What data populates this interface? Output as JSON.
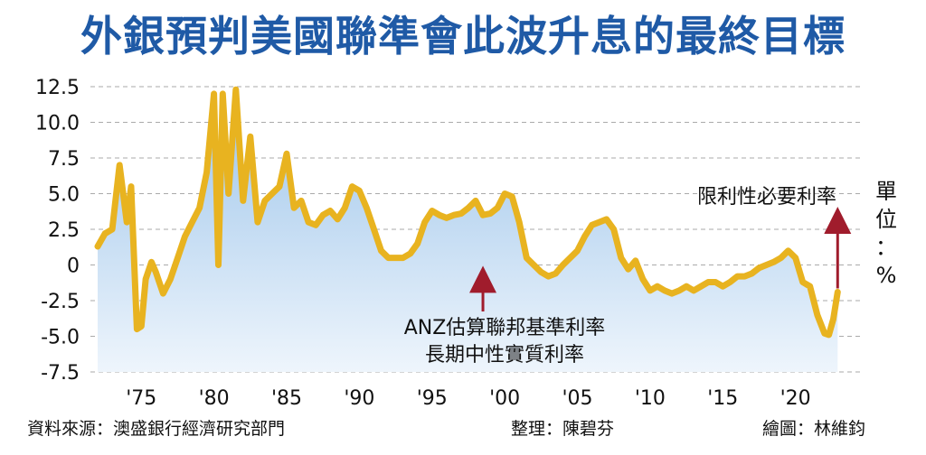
{
  "title": "外銀預判美國聯準會此波升息的最終目標",
  "unit_label": [
    "單",
    "位",
    "：",
    "%"
  ],
  "footer": {
    "source": "資料來源：澳盛銀行經濟研究部門",
    "editor": "整理：陳碧芬",
    "artist": "繪圖：林維鈞"
  },
  "colors": {
    "title": "#1f5aa6",
    "line": "#e8b320",
    "arrow": "#a01c2c",
    "area_top": "#9cc4ea",
    "area_bottom": "#eef5fc"
  },
  "chart_data": {
    "type": "area",
    "title": "外銀預判美國聯準會此波升息的最終目標",
    "ylim": [
      -7.5,
      12.5
    ],
    "yticks": [
      "12.5",
      "10.0",
      "7.5",
      "5.0",
      "2.5",
      "0",
      "-2.5",
      "-5.0",
      "-7.5"
    ],
    "ytick_values": [
      12.5,
      10.0,
      7.5,
      5.0,
      2.5,
      0,
      -2.5,
      -5.0,
      -7.5
    ],
    "xticks": [
      "'75",
      "'80",
      "'85",
      "'90",
      "'95",
      "'00",
      "'05",
      "'10",
      "'15",
      "'20"
    ],
    "xtick_values": [
      1975,
      1980,
      1985,
      1990,
      1995,
      2000,
      2005,
      2010,
      2015,
      2020
    ],
    "grid": "horizontal dashed",
    "series": [
      {
        "name": "ANZ估算聯邦基準利率長期中性實質利率",
        "x": [
          1972,
          1972.5,
          1973,
          1973.5,
          1974,
          1974.3,
          1974.7,
          1975,
          1975.3,
          1975.7,
          1976,
          1976.5,
          1977,
          1977.5,
          1978,
          1978.5,
          1979,
          1979.5,
          1980,
          1980.3,
          1980.6,
          1981,
          1981.5,
          1982,
          1982.5,
          1983,
          1983.5,
          1984,
          1984.5,
          1985,
          1985.5,
          1986,
          1986.5,
          1987,
          1987.5,
          1988,
          1988.5,
          1989,
          1989.5,
          1990,
          1990.5,
          1991,
          1991.5,
          1992,
          1992.5,
          1993,
          1993.5,
          1994,
          1994.5,
          1995,
          1995.5,
          1996,
          1996.5,
          1997,
          1997.5,
          1998,
          1998.5,
          1999,
          1999.5,
          2000,
          2000.5,
          2001,
          2001.5,
          2002,
          2002.5,
          2003,
          2003.5,
          2004,
          2004.5,
          2005,
          2005.5,
          2006,
          2006.5,
          2007,
          2007.5,
          2008,
          2008.5,
          2009,
          2009.5,
          2010,
          2010.5,
          2011,
          2011.5,
          2012,
          2012.5,
          2013,
          2013.5,
          2014,
          2014.5,
          2015,
          2015.5,
          2016,
          2016.5,
          2017,
          2017.5,
          2018,
          2018.5,
          2019,
          2019.5,
          2020,
          2020.5,
          2021,
          2021.5,
          2022,
          2022.3,
          2022.6,
          2022.9
        ],
        "y": [
          1.3,
          2.2,
          2.5,
          7.0,
          3.0,
          5.5,
          -4.5,
          -4.3,
          -1.0,
          0.2,
          -0.5,
          -2.0,
          -1.0,
          0.5,
          2.0,
          3.0,
          4.0,
          6.5,
          12.0,
          0.0,
          12.0,
          5.0,
          12.3,
          4.5,
          9.0,
          3.0,
          4.5,
          5.0,
          5.5,
          7.8,
          4.0,
          4.5,
          3.0,
          2.8,
          3.5,
          3.8,
          3.2,
          4.0,
          5.5,
          5.2,
          4.0,
          2.5,
          1.0,
          0.5,
          0.5,
          0.5,
          0.8,
          1.5,
          3.0,
          3.8,
          3.5,
          3.3,
          3.5,
          3.6,
          4.0,
          4.5,
          3.5,
          3.6,
          4.0,
          5.0,
          4.8,
          3.0,
          0.5,
          0.0,
          -0.5,
          -0.8,
          -0.6,
          0.0,
          0.5,
          1.0,
          2.0,
          2.8,
          3.0,
          3.2,
          2.5,
          0.5,
          -0.3,
          0.3,
          -1.0,
          -1.8,
          -1.5,
          -1.8,
          -2.0,
          -1.8,
          -1.5,
          -1.8,
          -1.5,
          -1.2,
          -1.2,
          -1.5,
          -1.2,
          -0.8,
          -0.8,
          -0.6,
          -0.2,
          0.0,
          0.2,
          0.5,
          1.0,
          0.5,
          -1.2,
          -1.5,
          -3.5,
          -4.8,
          -4.9,
          -3.8,
          -1.9
        ]
      }
    ],
    "annotations": [
      {
        "lines": [
          "ANZ估算聯邦基準利率",
          "長期中性實質利率"
        ],
        "arrow_to": [
          1998.5,
          -0.5
        ]
      },
      {
        "lines": [
          "限利性必要利率"
        ],
        "arrow_to": [
          2022.9,
          -1.9
        ]
      }
    ]
  }
}
